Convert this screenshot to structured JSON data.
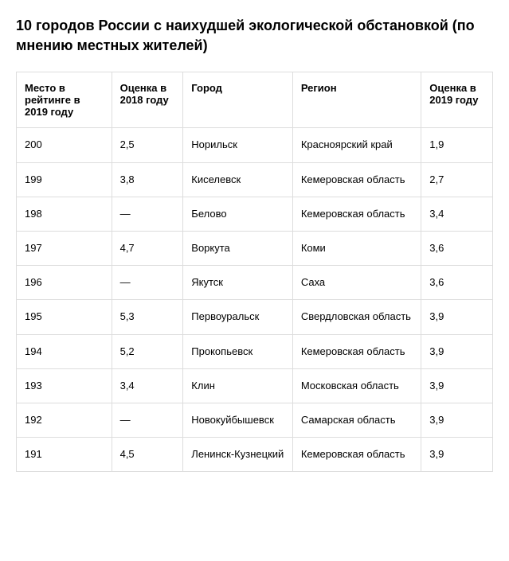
{
  "title": "10 городов России с наихудшей экологической обстановкой (по мнению местных жителей)",
  "table": {
    "type": "table",
    "columns": [
      "Место в рейтинге в 2019 году",
      "Оценка в 2018 году",
      "Город",
      "Регион",
      "Оценка в 2019 году"
    ],
    "rows": [
      [
        "200",
        "2,5",
        "Норильск",
        "Красноярский край",
        "1,9"
      ],
      [
        "199",
        "3,8",
        "Киселевск",
        "Кемеровская область",
        "2,7"
      ],
      [
        "198",
        "—",
        "Белово",
        "Кемеровская область",
        "3,4"
      ],
      [
        "197",
        "4,7",
        "Воркута",
        "Коми",
        "3,6"
      ],
      [
        "196",
        "—",
        "Якутск",
        "Саха",
        "3,6"
      ],
      [
        "195",
        "5,3",
        "Первоуральск",
        "Свердловская область",
        "3,9"
      ],
      [
        "194",
        "5,2",
        "Прокопьевск",
        "Кемеровская область",
        "3,9"
      ],
      [
        "193",
        "3,4",
        "Клин",
        "Московская область",
        "3,9"
      ],
      [
        "192",
        "—",
        "Новокуйбышевск",
        "Самарская область",
        "3,9"
      ],
      [
        "191",
        "4,5",
        "Ленинск-Кузнецкий",
        "Кемеровская область",
        "3,9"
      ]
    ],
    "header_fontsize": 13,
    "body_fontsize": 13,
    "title_fontsize": 18,
    "background_color": "#ffffff",
    "border_color": "#dddddd",
    "text_color": "#000000",
    "cell_padding": "12px 10px"
  }
}
